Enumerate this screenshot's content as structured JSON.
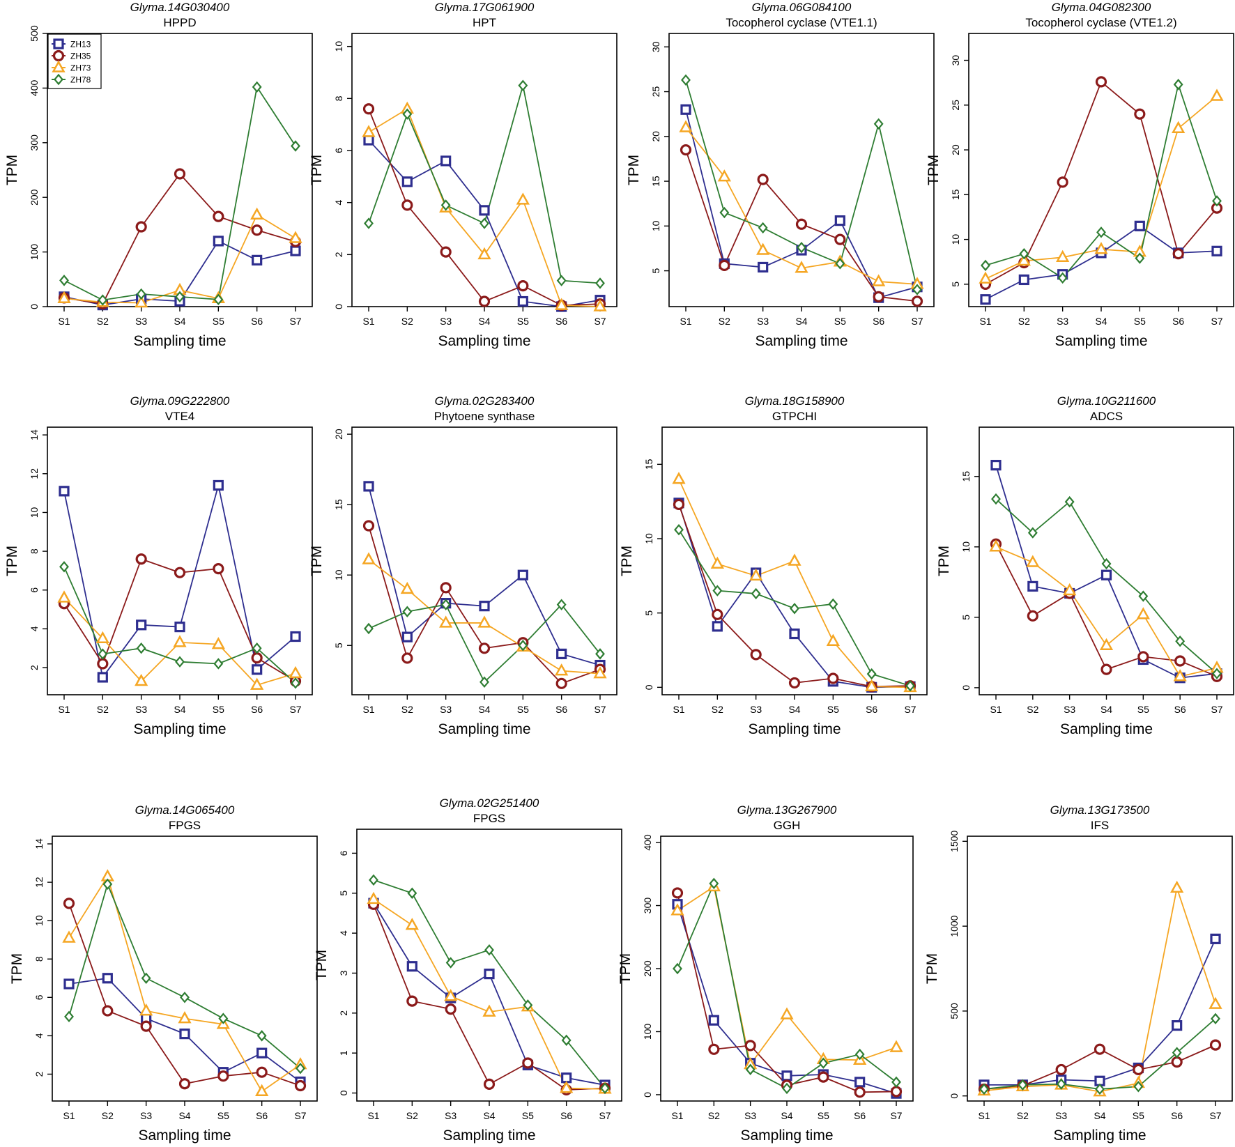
{
  "figure": {
    "series_names": [
      "ZH13",
      "ZH35",
      "ZH73",
      "ZH78"
    ],
    "series_colors": {
      "ZH13": "#2e2e8f",
      "ZH35": "#8b1a1a",
      "ZH73": "#f5a623",
      "ZH78": "#2e7d32"
    },
    "series_markers": {
      "ZH13": "square",
      "ZH35": "circle",
      "ZH73": "triangle",
      "ZH78": "diamond"
    }
  },
  "chart_data": [
    {
      "type": "line",
      "gene_id": "Glyma.14G030400",
      "title": "HPPD",
      "xlabel": "Sampling time",
      "ylabel": "TPM",
      "categories": [
        "S1",
        "S2",
        "S3",
        "S4",
        "S5",
        "S6",
        "S7"
      ],
      "ylim": [
        0,
        500
      ],
      "yticks": [
        0,
        100,
        200,
        300,
        400,
        500
      ],
      "legend": "top-left",
      "series": [
        {
          "name": "ZH13",
          "values": [
            18,
            3,
            14,
            10,
            120,
            85,
            102
          ]
        },
        {
          "name": "ZH35",
          "values": [
            16,
            5,
            146,
            243,
            165,
            140,
            119
          ]
        },
        {
          "name": "ZH73",
          "values": [
            15,
            8,
            7,
            30,
            15,
            168,
            125
          ]
        },
        {
          "name": "ZH78",
          "values": [
            48,
            12,
            23,
            18,
            13,
            402,
            294
          ]
        }
      ]
    },
    {
      "type": "line",
      "gene_id": "Glyma.17G061900",
      "title": "HPT",
      "xlabel": "Sampling time",
      "ylabel": "TPM",
      "categories": [
        "S1",
        "S2",
        "S3",
        "S4",
        "S5",
        "S6",
        "S7"
      ],
      "ylim": [
        0,
        10.5
      ],
      "yticks": [
        0,
        2,
        4,
        6,
        8,
        10
      ],
      "legend": "",
      "series": [
        {
          "name": "ZH13",
          "values": [
            6.4,
            4.8,
            5.6,
            3.7,
            0.2,
            0.0,
            0.25
          ]
        },
        {
          "name": "ZH35",
          "values": [
            7.6,
            3.9,
            2.1,
            0.2,
            0.8,
            0.05,
            0.1
          ]
        },
        {
          "name": "ZH73",
          "values": [
            6.7,
            7.6,
            3.8,
            2.0,
            4.1,
            0.05,
            0.0
          ]
        },
        {
          "name": "ZH78",
          "values": [
            3.2,
            7.4,
            3.9,
            3.2,
            8.5,
            1.0,
            0.9
          ]
        }
      ]
    },
    {
      "type": "line",
      "gene_id": "Glyma.06G084100",
      "title": "Tocopherol cyclase (VTE1.1)",
      "xlabel": "Sampling time",
      "ylabel": "TPM",
      "categories": [
        "S1",
        "S2",
        "S3",
        "S4",
        "S5",
        "S6",
        "S7"
      ],
      "ylim": [
        1,
        31.5
      ],
      "yticks": [
        5,
        10,
        15,
        20,
        25,
        30
      ],
      "legend": "",
      "series": [
        {
          "name": "ZH13",
          "values": [
            23,
            5.8,
            5.4,
            7.3,
            10.6,
            2.0,
            3.2
          ]
        },
        {
          "name": "ZH35",
          "values": [
            18.5,
            5.6,
            15.2,
            10.2,
            8.5,
            2.1,
            1.6
          ]
        },
        {
          "name": "ZH73",
          "values": [
            21,
            15.5,
            7.3,
            5.3,
            6.0,
            3.8,
            3.5
          ]
        },
        {
          "name": "ZH78",
          "values": [
            26.3,
            11.5,
            9.8,
            7.6,
            5.8,
            21.4,
            2.9
          ]
        }
      ]
    },
    {
      "type": "line",
      "gene_id": "Glyma.04G082300",
      "title": "Tocopherol cyclase (VTE1.2)",
      "xlabel": "Sampling time",
      "ylabel": "TPM",
      "categories": [
        "S1",
        "S2",
        "S3",
        "S4",
        "S5",
        "S6",
        "S7"
      ],
      "ylim": [
        2.5,
        33
      ],
      "yticks": [
        5,
        10,
        15,
        20,
        25,
        30
      ],
      "legend": "",
      "series": [
        {
          "name": "ZH13",
          "values": [
            3.3,
            5.5,
            6.1,
            8.5,
            11.5,
            8.5,
            8.7
          ]
        },
        {
          "name": "ZH35",
          "values": [
            5.0,
            7.4,
            16.4,
            27.6,
            24.0,
            8.4,
            13.5
          ]
        },
        {
          "name": "ZH73",
          "values": [
            5.6,
            7.6,
            8.0,
            8.9,
            8.6,
            22.4,
            26.0
          ]
        },
        {
          "name": "ZH78",
          "values": [
            7.1,
            8.4,
            5.7,
            10.8,
            7.9,
            27.3,
            14.3
          ]
        }
      ]
    },
    {
      "type": "line",
      "gene_id": "Glyma.09G222800",
      "title": "VTE4",
      "xlabel": "Sampling time",
      "ylabel": "TPM",
      "categories": [
        "S1",
        "S2",
        "S3",
        "S4",
        "S5",
        "S6",
        "S7"
      ],
      "ylim": [
        0.6,
        14.4
      ],
      "yticks": [
        2,
        4,
        6,
        8,
        10,
        12,
        14
      ],
      "legend": "",
      "series": [
        {
          "name": "ZH13",
          "values": [
            11.1,
            1.5,
            4.2,
            4.1,
            11.4,
            1.9,
            3.6
          ]
        },
        {
          "name": "ZH35",
          "values": [
            5.3,
            2.2,
            7.6,
            6.9,
            7.1,
            2.5,
            1.3
          ]
        },
        {
          "name": "ZH73",
          "values": [
            5.6,
            3.5,
            1.3,
            3.3,
            3.2,
            1.1,
            1.7
          ]
        },
        {
          "name": "ZH78",
          "values": [
            7.2,
            2.7,
            3.0,
            2.3,
            2.2,
            3.0,
            1.2
          ]
        }
      ]
    },
    {
      "type": "line",
      "gene_id": "Glyma.02G283400",
      "title": "Phytoene synthase",
      "xlabel": "Sampling time",
      "ylabel": "TPM",
      "categories": [
        "S1",
        "S2",
        "S3",
        "S4",
        "S5",
        "S6",
        "S7"
      ],
      "ylim": [
        1.5,
        20.5
      ],
      "yticks": [
        5,
        10,
        15,
        20
      ],
      "legend": "",
      "series": [
        {
          "name": "ZH13",
          "values": [
            16.3,
            5.6,
            8.0,
            7.8,
            10.0,
            4.4,
            3.6
          ]
        },
        {
          "name": "ZH35",
          "values": [
            13.5,
            4.1,
            9.1,
            4.8,
            5.2,
            2.3,
            3.3
          ]
        },
        {
          "name": "ZH73",
          "values": [
            11.1,
            9.0,
            6.6,
            6.6,
            4.9,
            3.2,
            3.0
          ]
        },
        {
          "name": "ZH78",
          "values": [
            6.2,
            7.4,
            7.9,
            2.4,
            5.0,
            7.9,
            4.4
          ]
        }
      ]
    },
    {
      "type": "line",
      "gene_id": "Glyma.18G158900",
      "title": "GTPCHI",
      "xlabel": "Sampling time",
      "ylabel": "TPM",
      "categories": [
        "S1",
        "S2",
        "S3",
        "S4",
        "S5",
        "S6",
        "S7"
      ],
      "ylim": [
        -0.5,
        17.5
      ],
      "yticks": [
        0,
        5,
        10,
        15
      ],
      "legend": "",
      "series": [
        {
          "name": "ZH13",
          "values": [
            12.4,
            4.1,
            7.7,
            3.6,
            0.4,
            0.0,
            0.05
          ]
        },
        {
          "name": "ZH35",
          "values": [
            12.3,
            4.9,
            2.2,
            0.3,
            0.6,
            0.05,
            0.1
          ]
        },
        {
          "name": "ZH73",
          "values": [
            14.0,
            8.3,
            7.5,
            8.5,
            3.1,
            0.05,
            0.0
          ]
        },
        {
          "name": "ZH78",
          "values": [
            10.6,
            6.5,
            6.3,
            5.3,
            5.6,
            0.9,
            0.1
          ]
        }
      ]
    },
    {
      "type": "line",
      "gene_id": "Glyma.10G211600",
      "title": "ADCS",
      "xlabel": "Sampling time",
      "ylabel": "TPM",
      "categories": [
        "S1",
        "S2",
        "S3",
        "S4",
        "S5",
        "S6",
        "S7"
      ],
      "ylim": [
        -0.5,
        18.5
      ],
      "yticks": [
        0,
        5,
        10,
        15
      ],
      "legend": "",
      "series": [
        {
          "name": "ZH13",
          "values": [
            15.8,
            7.2,
            6.7,
            8.0,
            2.0,
            0.7,
            1.0
          ]
        },
        {
          "name": "ZH35",
          "values": [
            10.2,
            5.1,
            6.7,
            1.3,
            2.2,
            1.9,
            0.8
          ]
        },
        {
          "name": "ZH73",
          "values": [
            10.0,
            8.9,
            6.9,
            3.0,
            5.2,
            0.8,
            1.4
          ]
        },
        {
          "name": "ZH78",
          "values": [
            13.4,
            11.0,
            13.2,
            8.8,
            6.5,
            3.3,
            1.0
          ]
        }
      ]
    },
    {
      "type": "line",
      "gene_id": "Glyma.14G065400",
      "title": "FPGS",
      "xlabel": "Sampling time",
      "ylabel": "TPM",
      "categories": [
        "S1",
        "S2",
        "S3",
        "S4",
        "S5",
        "S6",
        "S7"
      ],
      "ylim": [
        0.6,
        14.4
      ],
      "yticks": [
        2,
        4,
        6,
        8,
        10,
        12,
        14
      ],
      "legend": "",
      "series": [
        {
          "name": "ZH13",
          "values": [
            6.7,
            7.0,
            4.9,
            4.1,
            2.1,
            3.1,
            1.6
          ]
        },
        {
          "name": "ZH35",
          "values": [
            10.9,
            5.3,
            4.5,
            1.5,
            1.9,
            2.1,
            1.4
          ]
        },
        {
          "name": "ZH73",
          "values": [
            9.1,
            12.3,
            5.3,
            4.9,
            4.6,
            1.1,
            2.5
          ]
        },
        {
          "name": "ZH78",
          "values": [
            5.0,
            11.9,
            7.0,
            6.0,
            4.9,
            4.0,
            2.3
          ]
        }
      ]
    },
    {
      "type": "line",
      "gene_id": "Glyma.02G251400",
      "title": "FPGS",
      "xlabel": "Sampling time",
      "ylabel": "TPM",
      "categories": [
        "S1",
        "S2",
        "S3",
        "S4",
        "S5",
        "S6",
        "S7"
      ],
      "ylim": [
        -0.2,
        6.6
      ],
      "yticks": [
        0,
        1,
        2,
        3,
        4,
        5,
        6
      ],
      "legend": "",
      "series": [
        {
          "name": "ZH13",
          "values": [
            4.75,
            3.17,
            2.38,
            2.98,
            0.7,
            0.38,
            0.2
          ]
        },
        {
          "name": "ZH35",
          "values": [
            4.72,
            2.3,
            2.1,
            0.22,
            0.75,
            0.08,
            0.12
          ]
        },
        {
          "name": "ZH73",
          "values": [
            4.85,
            4.2,
            2.42,
            2.03,
            2.16,
            0.12,
            0.1
          ]
        },
        {
          "name": "ZH78",
          "values": [
            5.33,
            5.0,
            3.26,
            3.58,
            2.2,
            1.32,
            0.12
          ]
        }
      ]
    },
    {
      "type": "line",
      "gene_id": "Glyma.13G267900",
      "title": "GGH",
      "xlabel": "Sampling time",
      "ylabel": "TPM",
      "categories": [
        "S1",
        "S2",
        "S3",
        "S4",
        "S5",
        "S6",
        "S7"
      ],
      "ylim": [
        -10,
        410
      ],
      "yticks": [
        0,
        100,
        200,
        300,
        400
      ],
      "legend": "",
      "series": [
        {
          "name": "ZH13",
          "values": [
            302,
            118,
            50,
            30,
            32,
            20,
            2
          ]
        },
        {
          "name": "ZH35",
          "values": [
            320,
            72,
            78,
            15,
            28,
            4,
            5
          ]
        },
        {
          "name": "ZH73",
          "values": [
            292,
            330,
            48,
            127,
            56,
            55,
            75
          ]
        },
        {
          "name": "ZH78",
          "values": [
            200,
            335,
            40,
            10,
            50,
            64,
            20
          ]
        }
      ]
    },
    {
      "type": "line",
      "gene_id": "Glyma.13G173500",
      "title": "IFS",
      "xlabel": "Sampling time",
      "ylabel": "TPM",
      "categories": [
        "S1",
        "S2",
        "S3",
        "S4",
        "S5",
        "S6",
        "S7"
      ],
      "ylim": [
        -30,
        1530
      ],
      "yticks": [
        0,
        500,
        1000,
        1500
      ],
      "legend": "",
      "series": [
        {
          "name": "ZH13",
          "values": [
            65,
            65,
            95,
            88,
            165,
            415,
            925
          ]
        },
        {
          "name": "ZH35",
          "values": [
            40,
            60,
            155,
            275,
            155,
            200,
            300
          ]
        },
        {
          "name": "ZH73",
          "values": [
            30,
            55,
            65,
            25,
            75,
            1225,
            540
          ]
        },
        {
          "name": "ZH78",
          "values": [
            40,
            65,
            70,
            40,
            55,
            255,
            455
          ]
        }
      ]
    }
  ]
}
